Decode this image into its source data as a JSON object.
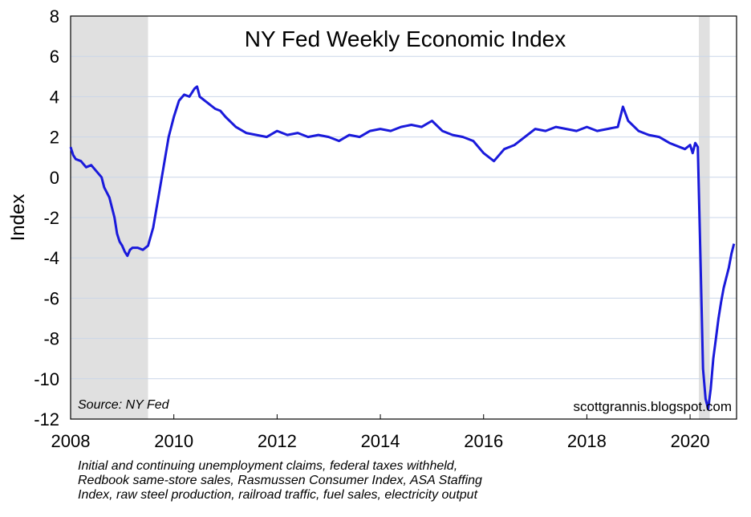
{
  "chart_data": {
    "type": "line",
    "title": "NY Fed Weekly Economic Index",
    "ylabel": "Index",
    "xlabel": "",
    "source_note": "Source: NY Fed",
    "credit": "scottgrannis.blogspot.com",
    "footnote_lines": [
      "Initial and continuing unemployment claims, federal taxes withheld,",
      "Redbook same-store sales, Rasmussen Consumer Index, ASA Staffing",
      "Index, raw steel production, railroad traffic, fuel sales, electricity output"
    ],
    "xlim": [
      2008,
      2020.9
    ],
    "ylim": [
      -12,
      8
    ],
    "xticks": [
      "2008",
      "2010",
      "2012",
      "2014",
      "2016",
      "2018",
      "2020"
    ],
    "yticks": [
      "8",
      "6",
      "4",
      "2",
      "0",
      "-2",
      "-4",
      "-6",
      "-8",
      "-10",
      "-12"
    ],
    "grid": "horizontal",
    "recessions": [
      {
        "start": 2008.0,
        "end": 2009.5
      },
      {
        "start": 2020.17,
        "end": 2020.38
      }
    ],
    "line_color": "#1a1adb",
    "recession_color": "#e0e0e0",
    "grid_color": "#c9d6e8",
    "series": [
      {
        "x": [
          2008.0,
          2008.05,
          2008.1,
          2008.2,
          2008.3,
          2008.4,
          2008.5,
          2008.6,
          2008.65,
          2008.75,
          2008.85,
          2008.9,
          2008.95,
          2009.0,
          2009.05,
          2009.1,
          2009.15,
          2009.2,
          2009.3,
          2009.4,
          2009.5,
          2009.6,
          2009.7,
          2009.8,
          2009.9,
          2010.0,
          2010.1,
          2010.2,
          2010.3,
          2010.4,
          2010.45,
          2010.5,
          2010.6,
          2010.7,
          2010.8,
          2010.9,
          2011.0,
          2011.2,
          2011.4,
          2011.6,
          2011.8,
          2012.0,
          2012.2,
          2012.4,
          2012.6,
          2012.8,
          2013.0,
          2013.2,
          2013.4,
          2013.6,
          2013.8,
          2014.0,
          2014.2,
          2014.4,
          2014.6,
          2014.8,
          2015.0,
          2015.2,
          2015.4,
          2015.6,
          2015.8,
          2016.0,
          2016.2,
          2016.4,
          2016.6,
          2016.8,
          2017.0,
          2017.2,
          2017.4,
          2017.6,
          2017.8,
          2018.0,
          2018.2,
          2018.4,
          2018.6,
          2018.7,
          2018.8,
          2019.0,
          2019.2,
          2019.4,
          2019.6,
          2019.8,
          2019.9,
          2020.0,
          2020.05,
          2020.1,
          2020.15,
          2020.2,
          2020.25,
          2020.3,
          2020.35,
          2020.4,
          2020.45,
          2020.5,
          2020.55,
          2020.6,
          2020.65,
          2020.7,
          2020.75,
          2020.8,
          2020.85
        ],
        "values": [
          1.5,
          1.1,
          0.9,
          0.8,
          0.5,
          0.6,
          0.3,
          0.0,
          -0.5,
          -1.0,
          -2.0,
          -2.8,
          -3.2,
          -3.4,
          -3.7,
          -3.9,
          -3.6,
          -3.5,
          -3.5,
          -3.6,
          -3.4,
          -2.5,
          -1.0,
          0.5,
          2.0,
          3.0,
          3.8,
          4.1,
          4.0,
          4.4,
          4.5,
          4.0,
          3.8,
          3.6,
          3.4,
          3.3,
          3.0,
          2.5,
          2.2,
          2.1,
          2.0,
          2.3,
          2.1,
          2.2,
          2.0,
          2.1,
          2.0,
          1.8,
          2.1,
          2.0,
          2.3,
          2.4,
          2.3,
          2.5,
          2.6,
          2.5,
          2.8,
          2.3,
          2.1,
          2.0,
          1.8,
          1.2,
          0.8,
          1.4,
          1.6,
          2.0,
          2.4,
          2.3,
          2.5,
          2.4,
          2.3,
          2.5,
          2.3,
          2.4,
          2.5,
          3.5,
          2.8,
          2.3,
          2.1,
          2.0,
          1.7,
          1.5,
          1.4,
          1.6,
          1.2,
          1.7,
          1.5,
          -4.0,
          -9.5,
          -11.0,
          -11.5,
          -10.5,
          -9.0,
          -8.0,
          -7.0,
          -6.2,
          -5.5,
          -5.0,
          -4.5,
          -3.8,
          -3.3
        ]
      }
    ]
  }
}
